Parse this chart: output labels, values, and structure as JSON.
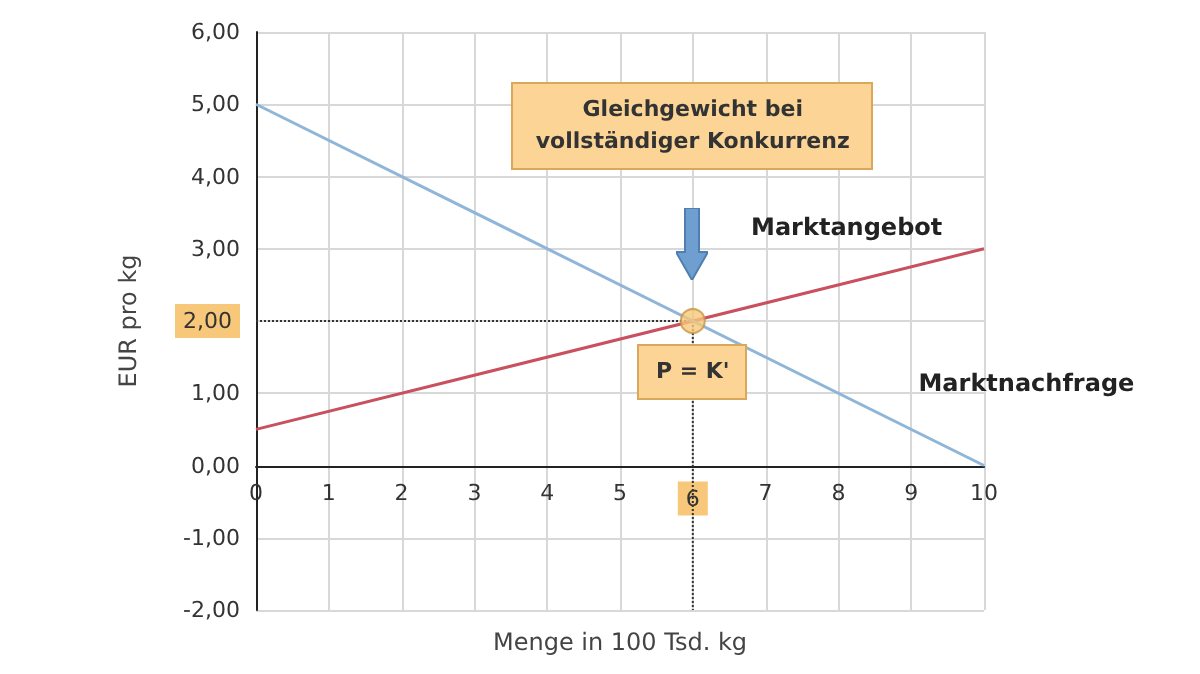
{
  "chart_data": {
    "type": "line",
    "xlabel": "Menge in 100 Tsd. kg",
    "ylabel": "EUR pro kg",
    "xlim": [
      0,
      10
    ],
    "xticks": [
      0,
      1,
      2,
      3,
      4,
      5,
      6,
      7,
      8,
      9,
      10
    ],
    "ylim": [
      -2,
      6
    ],
    "yticks": [
      {
        "value": -2,
        "label": "-2,00"
      },
      {
        "value": -1,
        "label": "-1,00"
      },
      {
        "value": 0,
        "label": "0,00"
      },
      {
        "value": 1,
        "label": "1,00"
      },
      {
        "value": 2,
        "label": "2,00"
      },
      {
        "value": 3,
        "label": "3,00"
      },
      {
        "value": 4,
        "label": "4,00"
      },
      {
        "value": 5,
        "label": "5,00"
      },
      {
        "value": 6,
        "label": "6,00"
      }
    ],
    "grid": true,
    "marker": "none",
    "series": [
      {
        "name": "Marktangebot",
        "color": "#c8505f",
        "x": [
          0,
          10
        ],
        "values": [
          0.5,
          3
        ]
      },
      {
        "name": "Marktnachfrage",
        "color": "#8fb6d8",
        "x": [
          0,
          10
        ],
        "values": [
          5,
          0
        ]
      },
      {
        "type": "scatter",
        "color": "#f7c77a",
        "x": [
          6
        ],
        "values": [
          2
        ],
        "marker": "circle"
      }
    ],
    "ref_lines": [
      {
        "axis": "x",
        "value": 6,
        "color": "#333333",
        "line_style": "dotted"
      },
      {
        "axis": "y",
        "value": 2,
        "color": "#333333",
        "line_style": "dotted"
      }
    ],
    "annotations": [
      "Gleichgewicht bei vollständiger Konkurrenz",
      {
        "text": "P = K'",
        "x": 6,
        "y": 2
      }
    ]
  }
}
